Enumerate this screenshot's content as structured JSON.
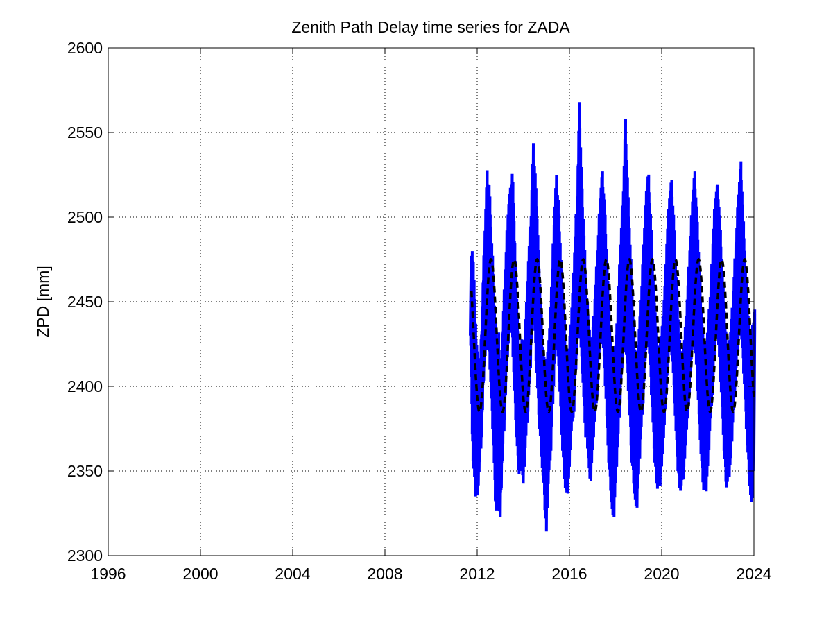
{
  "chart_data": {
    "type": "line",
    "title": "Zenith Path Delay time series for ZADA",
    "xlabel": "",
    "ylabel": "ZPD [mm]",
    "xlim": [
      1996,
      2024
    ],
    "ylim": [
      2300,
      2600
    ],
    "xticks": [
      1996,
      2000,
      2004,
      2008,
      2012,
      2016,
      2020,
      2024
    ],
    "yticks": [
      2300,
      2350,
      2400,
      2450,
      2500,
      2550,
      2600
    ],
    "xtick_labels": [
      "1996",
      "2000",
      "2004",
      "2008",
      "2012",
      "2016",
      "2020",
      "2024"
    ],
    "ytick_labels": [
      "2300",
      "2350",
      "2400",
      "2450",
      "2500",
      "2550",
      "2600"
    ],
    "grid": true,
    "legend": null,
    "series": [
      {
        "style": "solid",
        "color": "#0000ff",
        "x": [
          2011.7,
          2011.8,
          2011.9,
          2012.0,
          2012.1,
          2012.2,
          2012.3,
          2012.4,
          2012.5,
          2012.6,
          2012.7,
          2012.8,
          2012.9,
          2013.0,
          2013.1,
          2013.2,
          2013.3,
          2013.4,
          2013.5,
          2013.6,
          2013.7,
          2013.8,
          2013.9,
          2014.0,
          2014.1,
          2014.2,
          2014.3,
          2014.4,
          2014.5,
          2014.6,
          2014.7,
          2014.8,
          2014.9,
          2015.0,
          2015.1,
          2015.2,
          2015.3,
          2015.4,
          2015.5,
          2015.6,
          2015.7,
          2015.8,
          2015.9,
          2016.0,
          2016.1,
          2016.2,
          2016.3,
          2016.4,
          2016.5,
          2016.6,
          2016.7,
          2016.8,
          2016.9,
          2017.0,
          2017.1,
          2017.2,
          2017.3,
          2017.4,
          2017.5,
          2017.6,
          2017.7,
          2017.8,
          2017.9,
          2018.0,
          2018.1,
          2018.2,
          2018.3,
          2018.4,
          2018.5,
          2018.6,
          2018.7,
          2018.8,
          2018.9,
          2019.0,
          2019.1,
          2019.2,
          2019.3,
          2019.4,
          2019.5,
          2019.6,
          2019.7,
          2019.8,
          2019.9,
          2020.0,
          2020.1,
          2020.2,
          2020.3,
          2020.4,
          2020.5,
          2020.6,
          2020.7,
          2020.8,
          2020.9,
          2021.0,
          2021.1,
          2021.2,
          2021.3,
          2021.4,
          2021.5,
          2021.6,
          2021.7,
          2021.8,
          2021.9,
          2022.0,
          2022.1,
          2022.2,
          2022.3,
          2022.4,
          2022.5,
          2022.6,
          2022.7,
          2022.8,
          2022.9,
          2023.0,
          2023.1,
          2023.2,
          2023.3,
          2023.4,
          2023.5,
          2023.6,
          2023.7,
          2023.8,
          2023.9,
          2024.0
        ],
        "y_low": [
          2430,
          2360,
          2336,
          2333,
          2350,
          2370,
          2410,
          2420,
          2425,
          2395,
          2365,
          2326,
          2330,
          2320,
          2360,
          2380,
          2415,
          2430,
          2435,
          2400,
          2370,
          2347,
          2355,
          2340,
          2365,
          2385,
          2405,
          2440,
          2430,
          2400,
          2375,
          2355,
          2335,
          2311,
          2345,
          2362,
          2395,
          2425,
          2415,
          2390,
          2362,
          2342,
          2330,
          2350,
          2375,
          2385,
          2415,
          2435,
          2420,
          2395,
          2370,
          2362,
          2336,
          2360,
          2380,
          2395,
          2420,
          2430,
          2415,
          2385,
          2355,
          2335,
          2314,
          2340,
          2365,
          2390,
          2415,
          2425,
          2410,
          2385,
          2355,
          2340,
          2320,
          2345,
          2370,
          2390,
          2420,
          2430,
          2410,
          2380,
          2355,
          2340,
          2337,
          2350,
          2370,
          2395,
          2420,
          2425,
          2405,
          2375,
          2350,
          2338,
          2340,
          2355,
          2375,
          2395,
          2420,
          2430,
          2410,
          2385,
          2360,
          2340,
          2332,
          2350,
          2375,
          2395,
          2420,
          2435,
          2415,
          2390,
          2362,
          2340,
          2342,
          2355,
          2380,
          2400,
          2425,
          2435,
          2420,
          2395,
          2365,
          2345,
          2321,
          2360
        ],
        "y_high": [
          2480,
          2485,
          2440,
          2420,
          2415,
          2460,
          2500,
          2531,
          2520,
          2490,
          2460,
          2420,
          2435,
          2410,
          2450,
          2480,
          2510,
          2520,
          2530,
          2490,
          2450,
          2420,
          2430,
          2425,
          2455,
          2485,
          2510,
          2547,
          2525,
          2495,
          2460,
          2430,
          2415,
          2420,
          2440,
          2470,
          2505,
          2528,
          2510,
          2480,
          2455,
          2430,
          2420,
          2435,
          2460,
          2490,
          2520,
          2572,
          2525,
          2495,
          2460,
          2445,
          2425,
          2440,
          2465,
          2490,
          2520,
          2530,
          2510,
          2475,
          2445,
          2420,
          2425,
          2435,
          2465,
          2495,
          2525,
          2562,
          2520,
          2490,
          2455,
          2430,
          2420,
          2440,
          2465,
          2495,
          2525,
          2528,
          2500,
          2470,
          2445,
          2420,
          2430,
          2440,
          2465,
          2495,
          2520,
          2525,
          2500,
          2470,
          2440,
          2420,
          2425,
          2440,
          2465,
          2490,
          2518,
          2530,
          2505,
          2475,
          2445,
          2425,
          2430,
          2445,
          2465,
          2495,
          2520,
          2522,
          2500,
          2470,
          2445,
          2425,
          2430,
          2445,
          2470,
          2495,
          2522,
          2536,
          2505,
          2475,
          2450,
          2430,
          2440,
          2448
        ]
      },
      {
        "style": "dashed",
        "color": "#000000",
        "x_start": 2011.75,
        "x_end": 2024.0,
        "mean": 2430,
        "amplitude": 45,
        "period_years": 1.0,
        "peak_phase": 0.6
      }
    ]
  }
}
